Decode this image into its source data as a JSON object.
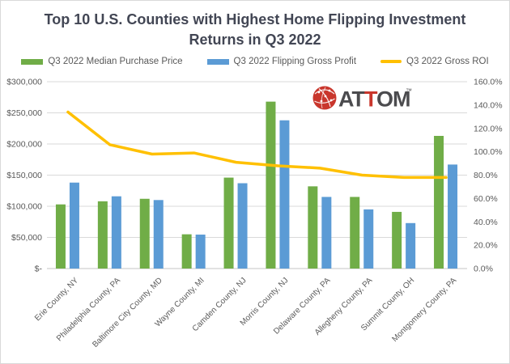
{
  "title": {
    "line1": "Top 10 U.S. Counties with Highest Home Flipping Investment",
    "line2": "Returns in Q3 2022"
  },
  "legend": {
    "items": [
      {
        "label": "Q3 2022 Median Purchase Price",
        "color": "#70AD47",
        "swatch": "rect"
      },
      {
        "label": "Q3 2022 Flipping Gross Profit",
        "color": "#5B9BD5",
        "swatch": "rect"
      },
      {
        "label": "Q3 2022 Gross ROI",
        "color": "#FFC000",
        "swatch": "line"
      }
    ]
  },
  "logo": {
    "icon": "globe-network-icon",
    "icon_color": "#C9362C",
    "parts": [
      {
        "text": "AT",
        "color": "#4B4B4E"
      },
      {
        "text": "T",
        "color": "#C9362C"
      },
      {
        "text": "OM",
        "color": "#4B4B4E"
      }
    ],
    "trademark": "™"
  },
  "chart_data": {
    "type": "bar",
    "title": "Top 10 U.S. Counties with Highest Home Flipping Investment Returns in Q3 2022",
    "categories": [
      "Erie County, NY",
      "Philadelphia County, PA",
      "Baltimore City County, MD",
      "Wayne County, MI",
      "Camden County, NJ",
      "Morris County, NJ",
      "Delaware County, PA",
      "Allegheny County, PA",
      "Summit County, OH",
      "Montgomery County, PA"
    ],
    "series": [
      {
        "name": "Q3 2022 Median Purchase Price",
        "type": "bar",
        "axis": "left",
        "color": "#70AD47",
        "values": [
          103000,
          108000,
          112000,
          55000,
          146000,
          268000,
          132000,
          115000,
          91000,
          213000
        ]
      },
      {
        "name": "Q3 2022 Flipping Gross Profit",
        "type": "bar",
        "axis": "left",
        "color": "#5B9BD5",
        "values": [
          138000,
          116000,
          110000,
          54500,
          137000,
          238000,
          115000,
          95000,
          73000,
          167000
        ]
      },
      {
        "name": "Q3 2022 Gross ROI",
        "type": "line",
        "axis": "right",
        "color": "#FFC000",
        "values": [
          134,
          106,
          98,
          99,
          91,
          88,
          86,
          80,
          78,
          78
        ]
      }
    ],
    "left_axis": {
      "min": 0,
      "max": 300000,
      "tick_step": 50000,
      "ticks": [
        "$300,000",
        "$250,000",
        "$200,000",
        "$150,000",
        "$100,000",
        "$50,000",
        "$-"
      ]
    },
    "right_axis": {
      "min": 0,
      "max": 160,
      "tick_step": 20,
      "ticks": [
        "160.0%",
        "140.0%",
        "120.0%",
        "100.0%",
        "80.0%",
        "60.0%",
        "40.0%",
        "20.0%",
        "0.0%"
      ]
    },
    "gridlines": true,
    "legend_position": "top",
    "x_labels_rotation_deg": 45
  },
  "colors": {
    "grid": "#D9D9D9",
    "axis_line": "#C6C6C6",
    "axis_text": "#595959",
    "title_text": "#424654",
    "border": "#D9D9D9",
    "background": "#FFFFFF"
  }
}
